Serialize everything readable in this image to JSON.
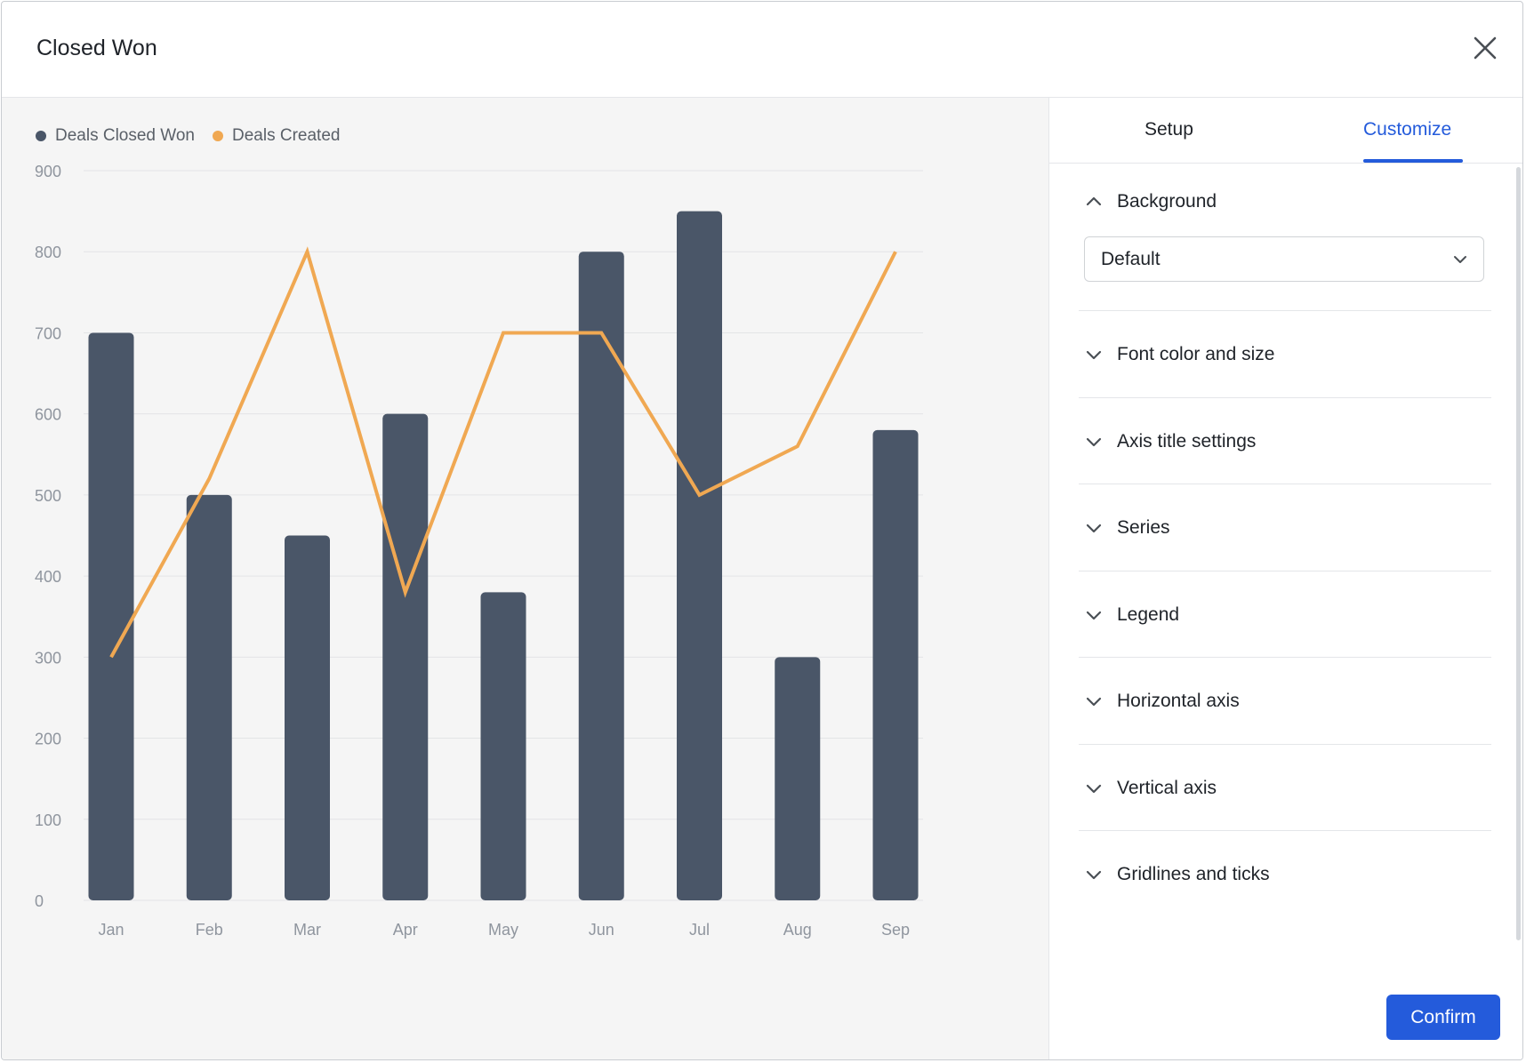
{
  "dialog": {
    "title": "Closed Won"
  },
  "tabs": [
    {
      "label": "Setup",
      "active": false
    },
    {
      "label": "Customize",
      "active": true
    }
  ],
  "customize": {
    "background": {
      "label": "Background",
      "expanded": true,
      "select_value": "Default"
    },
    "sections": [
      {
        "label": "Font color and size"
      },
      {
        "label": "Axis title settings"
      },
      {
        "label": "Series"
      },
      {
        "label": "Legend"
      },
      {
        "label": "Horizontal axis"
      },
      {
        "label": "Vertical axis"
      },
      {
        "label": "Gridlines and ticks"
      }
    ],
    "confirm_label": "Confirm"
  },
  "colors": {
    "accent": "#245bdb",
    "bar": "#4a5668",
    "line": "#f0a852"
  },
  "icons": {
    "close": "close-icon",
    "expanded": "chevron-up-icon",
    "collapsed": "chevron-down-icon",
    "select": "chevron-down-icon"
  },
  "chart_data": {
    "type": "bar",
    "categories": [
      "Jan",
      "Feb",
      "Mar",
      "Apr",
      "May",
      "Jun",
      "Jul",
      "Aug",
      "Sep"
    ],
    "series": [
      {
        "name": "Deals Closed Won",
        "type": "bar",
        "color": "#4a5668",
        "values": [
          700,
          500,
          450,
          600,
          380,
          800,
          850,
          300,
          580
        ]
      },
      {
        "name": "Deals Created",
        "type": "line",
        "color": "#f0a852",
        "values": [
          300,
          520,
          800,
          380,
          700,
          700,
          500,
          560,
          800
        ]
      }
    ],
    "ylim": [
      0,
      900
    ],
    "yticks": [
      0,
      100,
      200,
      300,
      400,
      500,
      600,
      700,
      800,
      900
    ],
    "grid": true,
    "legend_position": "top-left"
  }
}
